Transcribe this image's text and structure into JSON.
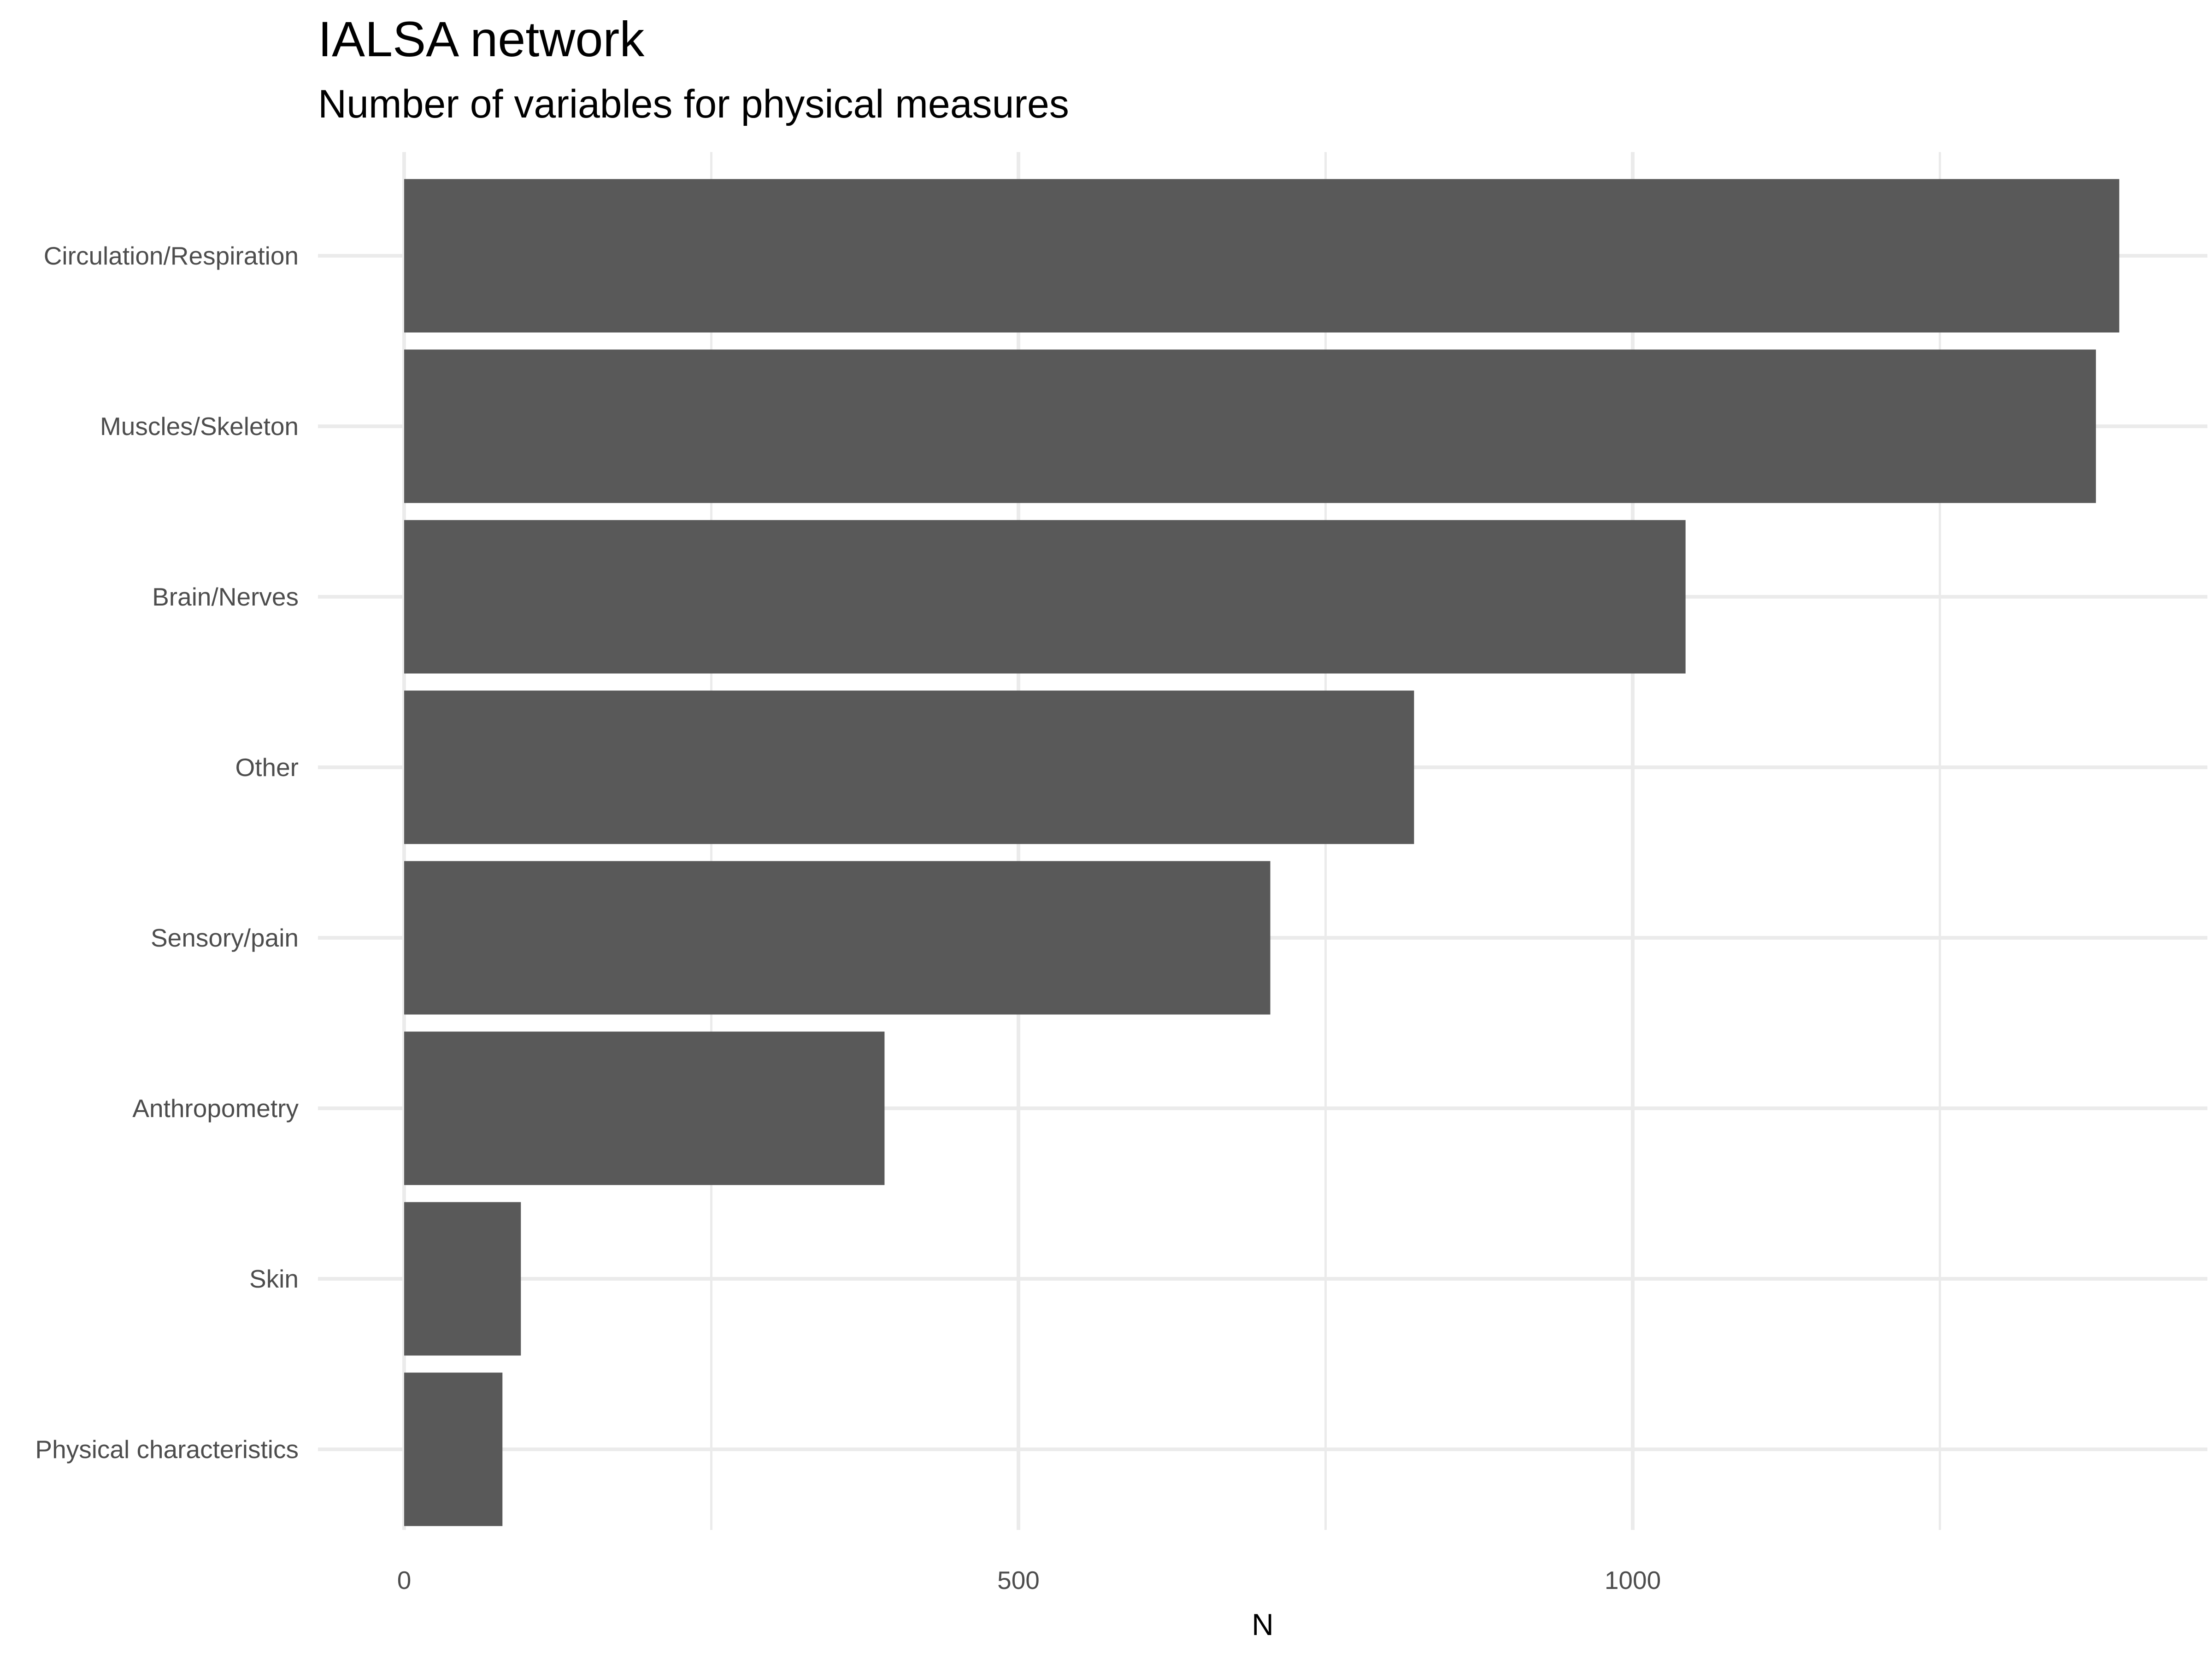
{
  "chart_data": {
    "type": "bar",
    "orientation": "horizontal",
    "title": "IALSA network",
    "subtitle": "Number of variables for physical measures",
    "xlabel": "N",
    "ylabel": "",
    "xlim": [
      0,
      1470
    ],
    "x_ticks": [
      0,
      500,
      1000
    ],
    "grid": true,
    "categories": [
      "Circulation/Respiration",
      "Muscles/Skeleton",
      "Brain/Nerves",
      "Other",
      "Sensory/pain",
      "Anthropometry",
      "Skin",
      "Physical characteristics"
    ],
    "values": [
      1396,
      1377,
      1043,
      822,
      705,
      391,
      95,
      80
    ],
    "colors": {
      "bar": "#595959",
      "grid_major": "#ebebeb",
      "grid_minor": "#ebebeb",
      "tick_text": "#4d4d4d",
      "title_text": "#000000"
    }
  }
}
